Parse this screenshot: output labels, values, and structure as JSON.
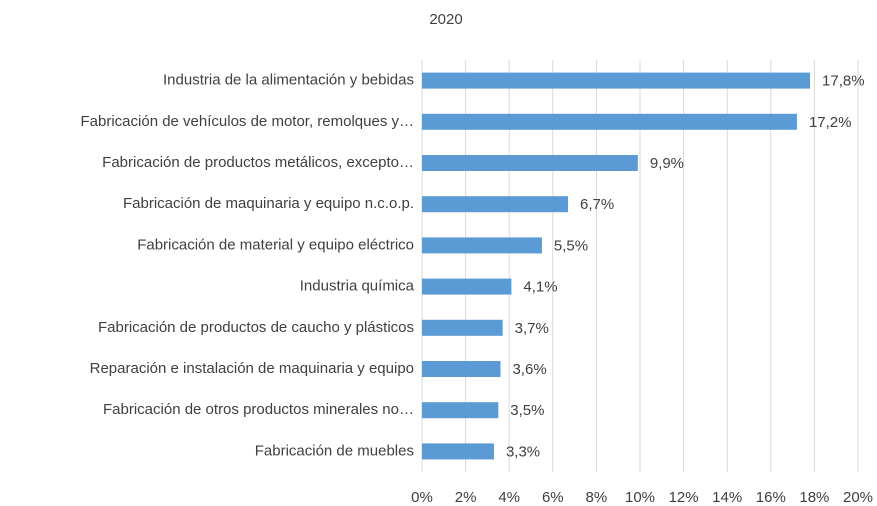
{
  "chart_data": {
    "type": "bar",
    "orientation": "horizontal",
    "title": "2020",
    "categories": [
      "Industria de la alimentación y bebidas",
      "Fabricación de vehículos de motor, remolques y…",
      "Fabricación de productos metálicos, excepto…",
      "Fabricación de maquinaria y equipo n.c.o.p.",
      "Fabricación de material y equipo eléctrico",
      "Industria química",
      "Fabricación de productos de caucho y plásticos",
      "Reparación e instalación de maquinaria y equipo",
      "Fabricación de otros productos minerales no…",
      "Fabricación de muebles"
    ],
    "values": [
      17.8,
      17.2,
      9.9,
      6.7,
      5.5,
      4.1,
      3.7,
      3.6,
      3.5,
      3.3
    ],
    "value_labels": [
      "17,8%",
      "17,2%",
      "9,9%",
      "6,7%",
      "5,5%",
      "4,1%",
      "3,7%",
      "3,6%",
      "3,5%",
      "3,3%"
    ],
    "color": "#5b9bd5",
    "xlim": [
      0,
      20
    ],
    "xticks": [
      {
        "value": 0,
        "label": "0%"
      },
      {
        "value": 2,
        "label": "2%"
      },
      {
        "value": 4,
        "label": "4%"
      },
      {
        "value": 6,
        "label": "6%"
      },
      {
        "value": 8,
        "label": "8%"
      },
      {
        "value": 10,
        "label": "10%"
      },
      {
        "value": 12,
        "label": "12%"
      },
      {
        "value": 14,
        "label": "14%"
      },
      {
        "value": 16,
        "label": "16%"
      },
      {
        "value": 18,
        "label": "18%"
      },
      {
        "value": 20,
        "label": "20%"
      }
    ],
    "grid": true
  }
}
